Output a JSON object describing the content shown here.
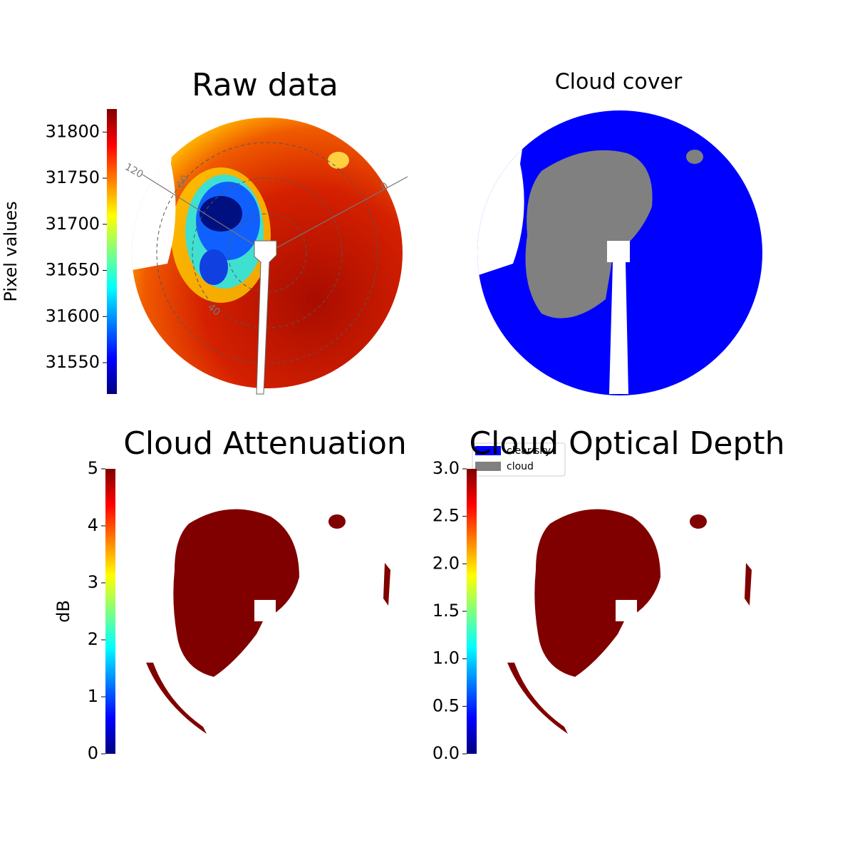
{
  "chart_data": [
    {
      "type": "image",
      "title": "Raw data",
      "ylabel": "Pixel values",
      "colormap": "jet",
      "ylim": [
        31516,
        31825
      ],
      "yticks": [
        31550,
        31600,
        31650,
        31700,
        31750,
        31800
      ],
      "polar_labels": [
        "120",
        "60",
        "40",
        "0"
      ]
    },
    {
      "type": "image",
      "title": "Cloud cover",
      "series": [
        {
          "name": "clear sky",
          "color": "#0000ff"
        },
        {
          "name": "cloud",
          "color": "#808080"
        }
      ]
    },
    {
      "type": "image",
      "title": "Cloud Attenuation",
      "ylabel": "dB",
      "colormap": "jet",
      "ylim": [
        0,
        5
      ],
      "yticks": [
        0,
        1,
        2,
        3,
        4,
        5
      ]
    },
    {
      "type": "image",
      "title": "Cloud Optical Depth",
      "colormap": "jet",
      "ylim": [
        0,
        3
      ],
      "yticks": [
        {
          "value": 0,
          "label": "0.0"
        },
        0.5,
        {
          "value": 1,
          "label": "1.0"
        },
        1.5,
        {
          "value": 2,
          "label": "2.0"
        },
        2.5,
        {
          "value": 3,
          "label": "3.0"
        }
      ]
    }
  ]
}
